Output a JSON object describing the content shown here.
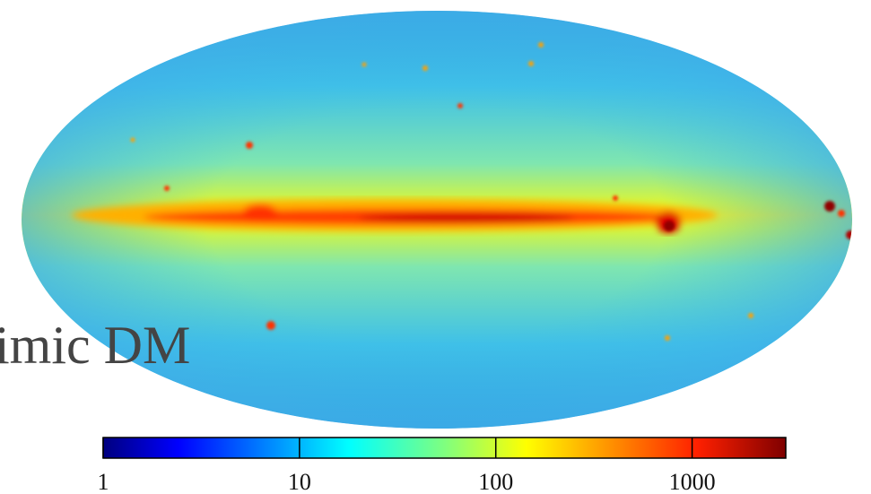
{
  "overlay_text": "imic DM",
  "colorbar": {
    "lim": [
      1,
      3000
    ],
    "ticks": [
      1,
      10,
      100,
      1000
    ],
    "log": true
  }
}
